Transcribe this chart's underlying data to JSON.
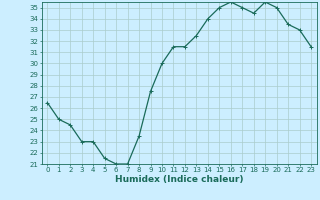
{
  "x": [
    0,
    1,
    2,
    3,
    4,
    5,
    6,
    7,
    8,
    9,
    10,
    11,
    12,
    13,
    14,
    15,
    16,
    17,
    18,
    19,
    20,
    21,
    22,
    23
  ],
  "y": [
    26.5,
    25.0,
    24.5,
    23.0,
    23.0,
    21.5,
    21.0,
    21.0,
    23.5,
    27.5,
    30.0,
    31.5,
    31.5,
    32.5,
    34.0,
    35.0,
    35.5,
    35.0,
    34.5,
    35.5,
    35.0,
    33.5,
    33.0,
    31.5
  ],
  "line_color": "#1a6b5a",
  "marker": "+",
  "marker_size": 3,
  "linewidth": 0.9,
  "xlabel": "Humidex (Indice chaleur)",
  "xlim": [
    -0.5,
    23.5
  ],
  "ylim": [
    21,
    35.5
  ],
  "yticks": [
    21,
    22,
    23,
    24,
    25,
    26,
    27,
    28,
    29,
    30,
    31,
    32,
    33,
    34,
    35
  ],
  "xticks": [
    0,
    1,
    2,
    3,
    4,
    5,
    6,
    7,
    8,
    9,
    10,
    11,
    12,
    13,
    14,
    15,
    16,
    17,
    18,
    19,
    20,
    21,
    22,
    23
  ],
  "xtick_labels": [
    "0",
    "1",
    "2",
    "3",
    "4",
    "5",
    "6",
    "7",
    "8",
    "9",
    "10",
    "11",
    "12",
    "13",
    "14",
    "15",
    "16",
    "17",
    "18",
    "19",
    "20",
    "21",
    "22",
    "23"
  ],
  "ytick_labels": [
    "21",
    "22",
    "23",
    "24",
    "25",
    "26",
    "27",
    "28",
    "29",
    "30",
    "31",
    "32",
    "33",
    "34",
    "35"
  ],
  "bg_color": "#cceeff",
  "grid_color": "#aacccc",
  "tick_color": "#1a6b5a",
  "label_fontsize": 5.5,
  "tick_fontsize": 5,
  "xlabel_fontsize": 6.5
}
